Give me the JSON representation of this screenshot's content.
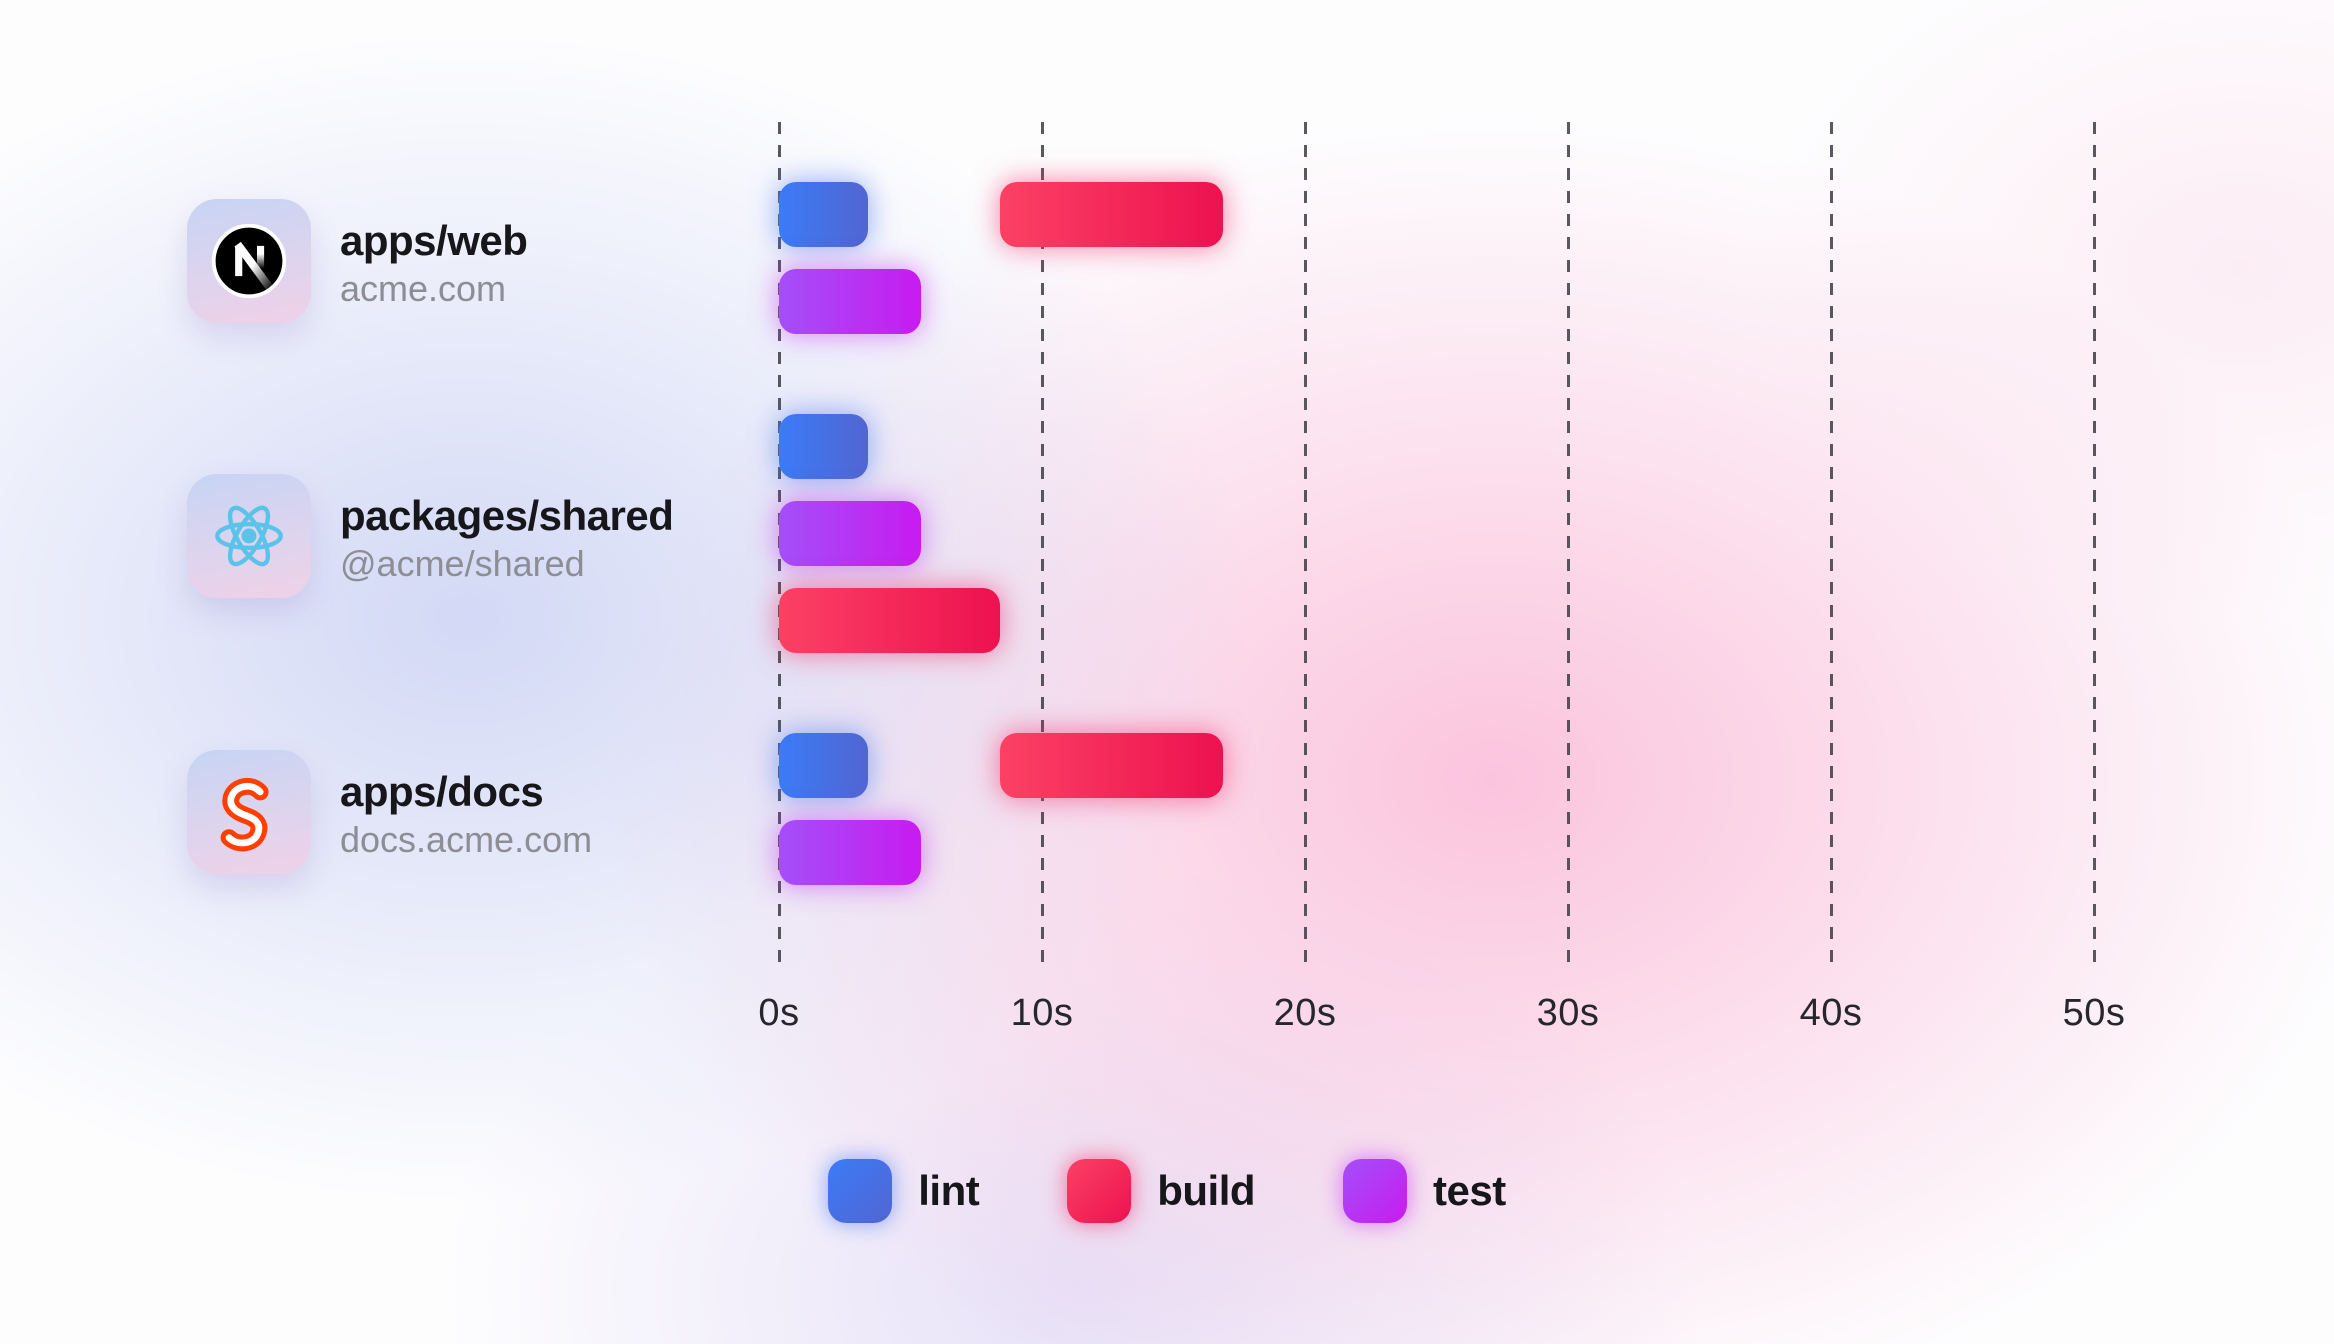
{
  "colors": {
    "lint": {
      "from": "#3b7bf7",
      "to": "#5265d2",
      "glow": "rgba(82,124,243,0.55)"
    },
    "build": {
      "from": "#fb4164",
      "to": "#ed1150",
      "glow": "rgba(243,34,95,0.50)"
    },
    "test": {
      "from": "#a44ff8",
      "to": "#c81bf0",
      "glow": "rgba(196,44,242,0.50)"
    },
    "grid_dash": "#3c3c42",
    "title_text": "#17171b",
    "subtitle_text": "#8d8d95",
    "tick_text": "#26262c",
    "react_cyan": "#5bc3ea",
    "svelte_orange": "#ff3e00",
    "nextjs_black": "#000000"
  },
  "chart_data": {
    "type": "bar",
    "subtype": "gantt-timeline",
    "title": "",
    "xlabel": "",
    "ylabel": "",
    "unit": "seconds",
    "xlim": [
      0,
      50
    ],
    "grid": "dashed-vertical",
    "x_ticks": {
      "labels": [
        "0s",
        "10s",
        "20s",
        "30s",
        "40s",
        "50s"
      ],
      "values": [
        0,
        10,
        20,
        30,
        40,
        50
      ]
    },
    "rows": [
      {
        "title": "apps/web",
        "subtitle": "acme.com",
        "icon": "nextjs-icon",
        "bars": [
          {
            "task": "lint",
            "start": 0,
            "end": 3.4,
            "line": 0
          },
          {
            "task": "build",
            "start": 8.4,
            "end": 16.9,
            "line": 0
          },
          {
            "task": "test",
            "start": 0,
            "end": 5.4,
            "line": 1
          }
        ]
      },
      {
        "title": "packages/shared",
        "subtitle": "@acme/shared",
        "icon": "react-icon",
        "bars": [
          {
            "task": "lint",
            "start": 0,
            "end": 3.4,
            "line": 0
          },
          {
            "task": "test",
            "start": 0,
            "end": 5.4,
            "line": 1
          },
          {
            "task": "build",
            "start": 0,
            "end": 8.4,
            "line": 2
          }
        ]
      },
      {
        "title": "apps/docs",
        "subtitle": "docs.acme.com",
        "icon": "svelte-icon",
        "bars": [
          {
            "task": "lint",
            "start": 0,
            "end": 3.4,
            "line": 0
          },
          {
            "task": "build",
            "start": 8.4,
            "end": 16.9,
            "line": 0
          },
          {
            "task": "test",
            "start": 0,
            "end": 5.4,
            "line": 1
          }
        ]
      }
    ],
    "legend": {
      "position": "bottom-center",
      "items": [
        {
          "label": "lint",
          "task": "lint"
        },
        {
          "label": "build",
          "task": "build"
        },
        {
          "label": "test",
          "task": "test"
        }
      ]
    }
  }
}
